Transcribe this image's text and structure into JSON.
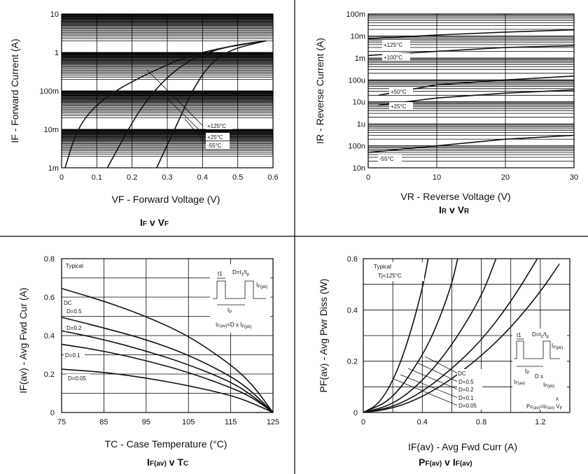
{
  "chart_data": [
    {
      "type": "line",
      "panel": "top-left",
      "xlabel": "VF - Forward Voltage (V)",
      "ylabel": "IF - Forward Current (A)",
      "caption": {
        "main1": "I",
        "sub1": "F",
        "mid": " v ",
        "main2": "V",
        "sub2": "F"
      },
      "x_ticks": [
        "0",
        "0.1",
        "0.2",
        "0.3",
        "0.4",
        "0.5",
        "0.6"
      ],
      "y_ticks": [
        "1m",
        "10m",
        "100m",
        "1",
        "10"
      ],
      "xlim": [
        0,
        0.6
      ],
      "ylim_log10": [
        -3,
        1
      ],
      "series": [
        {
          "name": "+125°C",
          "x": [
            0.01,
            0.04,
            0.08,
            0.15,
            0.25,
            0.35,
            0.45,
            0.58
          ],
          "y": [
            0.001,
            0.008,
            0.03,
            0.1,
            0.3,
            0.75,
            1.3,
            2.0
          ]
        },
        {
          "name": "+25°C",
          "x": [
            0.13,
            0.18,
            0.22,
            0.27,
            0.33,
            0.4,
            0.48,
            0.58
          ],
          "y": [
            0.001,
            0.007,
            0.03,
            0.12,
            0.4,
            0.9,
            1.5,
            2.0
          ]
        },
        {
          "name": "-55°C",
          "x": [
            0.27,
            0.3,
            0.33,
            0.37,
            0.42,
            0.48,
            0.58
          ],
          "y": [
            0.001,
            0.004,
            0.015,
            0.1,
            0.5,
            1.2,
            2.0
          ]
        }
      ],
      "annotations": [
        "+125°C",
        "+25°C",
        "-55°C"
      ]
    },
    {
      "type": "line",
      "panel": "top-right",
      "xlabel": "VR - Reverse Voltage (V)",
      "ylabel": "IR - Reverse Current (A)",
      "caption": {
        "main1": "I",
        "sub1": "R",
        "mid": " v ",
        "main2": "V",
        "sub2": "R"
      },
      "x_ticks": [
        "0",
        "10",
        "20",
        "30"
      ],
      "y_ticks": [
        "10n",
        "100n",
        "1u",
        "10u",
        "100u",
        "1m",
        "10m",
        "100m"
      ],
      "xlim": [
        0,
        30
      ],
      "ylim_log10": [
        -8,
        -1
      ],
      "series": [
        {
          "name": "+125°C",
          "x": [
            0,
            10,
            20,
            30
          ],
          "y": [
            0.0075,
            0.011,
            0.015,
            0.019
          ]
        },
        {
          "name": "+100°C",
          "x": [
            0,
            10,
            20,
            30
          ],
          "y": [
            0.0013,
            0.002,
            0.003,
            0.0036
          ]
        },
        {
          "name": "+50°C",
          "x": [
            1.5,
            10,
            20,
            30
          ],
          "y": [
            2e-05,
            6e-05,
            0.0001,
            0.00015
          ]
        },
        {
          "name": "+25°C",
          "x": [
            1.5,
            10,
            20,
            30
          ],
          "y": [
            7e-06,
            1.5e-05,
            2.5e-05,
            3.5e-05
          ]
        },
        {
          "name": "-55°C",
          "x": [
            0,
            10,
            20,
            30
          ],
          "y": [
            5e-08,
            1e-07,
            2e-07,
            3e-07
          ]
        }
      ],
      "annotations": [
        "+125°C",
        "+100°C",
        "+50°C",
        "+25°C",
        "-55°C"
      ]
    },
    {
      "type": "line",
      "panel": "bottom-left",
      "xlabel": "TC - Case Temperature (°C)",
      "ylabel": "IF(av) - Avg Fwd Cur (A)",
      "caption": {
        "main1": "I",
        "sub1": "F(av)",
        "mid": " v ",
        "main2": "T",
        "sub2": "C"
      },
      "x_ticks": [
        "75",
        "85",
        "95",
        "105",
        "115",
        "125"
      ],
      "y_ticks": [
        "0",
        "0.2",
        "0.4",
        "0.6",
        "0.8"
      ],
      "xlim": [
        75,
        125
      ],
      "ylim": [
        0,
        0.8
      ],
      "series": [
        {
          "name": "DC",
          "x": [
            75,
            85,
            95,
            105,
            115,
            120,
            125
          ],
          "y": [
            0.645,
            0.58,
            0.5,
            0.4,
            0.25,
            0.15,
            0
          ]
        },
        {
          "name": "D=0.5",
          "x": [
            75,
            85,
            95,
            105,
            115,
            120,
            125
          ],
          "y": [
            0.495,
            0.44,
            0.38,
            0.3,
            0.19,
            0.11,
            0
          ]
        },
        {
          "name": "D=0.2",
          "x": [
            75,
            85,
            95,
            105,
            115,
            120,
            125
          ],
          "y": [
            0.425,
            0.38,
            0.32,
            0.25,
            0.16,
            0.09,
            0
          ]
        },
        {
          "name": "D=0.1",
          "x": [
            75,
            85,
            95,
            105,
            115,
            120,
            125
          ],
          "y": [
            0.355,
            0.32,
            0.27,
            0.21,
            0.13,
            0.08,
            0
          ]
        },
        {
          "name": "D=0.05",
          "x": [
            75,
            85,
            95,
            105,
            115,
            120,
            125
          ],
          "y": [
            0.225,
            0.21,
            0.18,
            0.14,
            0.09,
            0.05,
            0
          ]
        }
      ],
      "annotations": [
        "Typical",
        "DC",
        "D=0.5",
        "D=0.2",
        "D=0.1",
        "D=0.05"
      ],
      "inset": {
        "t1": "t1",
        "d_eq": "D=t",
        "d_sub1": "1",
        "d_slash": "/t",
        "d_sub2": "p",
        "ifpk": "I",
        "ifpk_sub": "F(pk)",
        "tp": "t",
        "tp_sub": "P",
        "formula": "I",
        "formula_sub": "F(av)",
        "formula_mid": "=D x I",
        "formula_sub2": "F(pk)"
      }
    },
    {
      "type": "line",
      "panel": "bottom-right",
      "xlabel": "IF(av) - Avg Fwd Curr (A)",
      "ylabel": "PF(av) - Avg Pwr Diss (W)",
      "caption": {
        "main1": "P",
        "sub1": "F(av)",
        "mid": " v ",
        "main2": "I",
        "sub2": "F(av)"
      },
      "x_ticks": [
        "0",
        "0.4",
        "0.8",
        "1.2"
      ],
      "y_ticks": [
        "0",
        "0.2",
        "0.4",
        "0.6"
      ],
      "xlim": [
        0,
        1.4
      ],
      "ylim": [
        0,
        0.6
      ],
      "series": [
        {
          "name": "D=0.05",
          "x": [
            0,
            0.1,
            0.2,
            0.3,
            0.4,
            0.44
          ],
          "y": [
            0,
            0.03,
            0.12,
            0.27,
            0.48,
            0.6
          ]
        },
        {
          "name": "D=0.1",
          "x": [
            0,
            0.2,
            0.4,
            0.5,
            0.6,
            0.64
          ],
          "y": [
            0,
            0.05,
            0.22,
            0.34,
            0.5,
            0.6
          ]
        },
        {
          "name": "D=0.2",
          "x": [
            0,
            0.2,
            0.4,
            0.6,
            0.8,
            0.9
          ],
          "y": [
            0,
            0.03,
            0.12,
            0.26,
            0.45,
            0.6
          ]
        },
        {
          "name": "D=0.5",
          "x": [
            0,
            0.2,
            0.4,
            0.6,
            0.8,
            1.0,
            1.18
          ],
          "y": [
            0,
            0.02,
            0.08,
            0.17,
            0.28,
            0.43,
            0.6
          ]
        },
        {
          "name": "DC",
          "x": [
            0,
            0.2,
            0.4,
            0.6,
            0.8,
            1.0,
            1.2,
            1.33
          ],
          "y": [
            0,
            0.015,
            0.06,
            0.13,
            0.22,
            0.33,
            0.47,
            0.58
          ]
        }
      ],
      "annotations": [
        "Typical",
        "Tj=125°C",
        "DC",
        "D=0.5",
        "D=0.2",
        "D=0.1",
        "D=0.05"
      ],
      "inset": {
        "t1": "t1",
        "d_eq": "D=t",
        "d_sub1": "1",
        "d_slash": "/t",
        "d_sub2": "p",
        "ifpk": "I",
        "ifpk_sub": "F(pk)",
        "tp": "t",
        "tp_sub": "P",
        "dx": "D x",
        "iflabel": "I",
        "iflabel_sub": "F(av)",
        "iflabel2": "I",
        "iflabel2_sub": "F(pk)",
        "x": "x",
        "pf": "P",
        "pf_sub": "F(av)",
        "pf_mid": "=I",
        "pf_sub2": "F(av)",
        "pf_v": "V",
        "pf_vsub": "F"
      }
    }
  ]
}
